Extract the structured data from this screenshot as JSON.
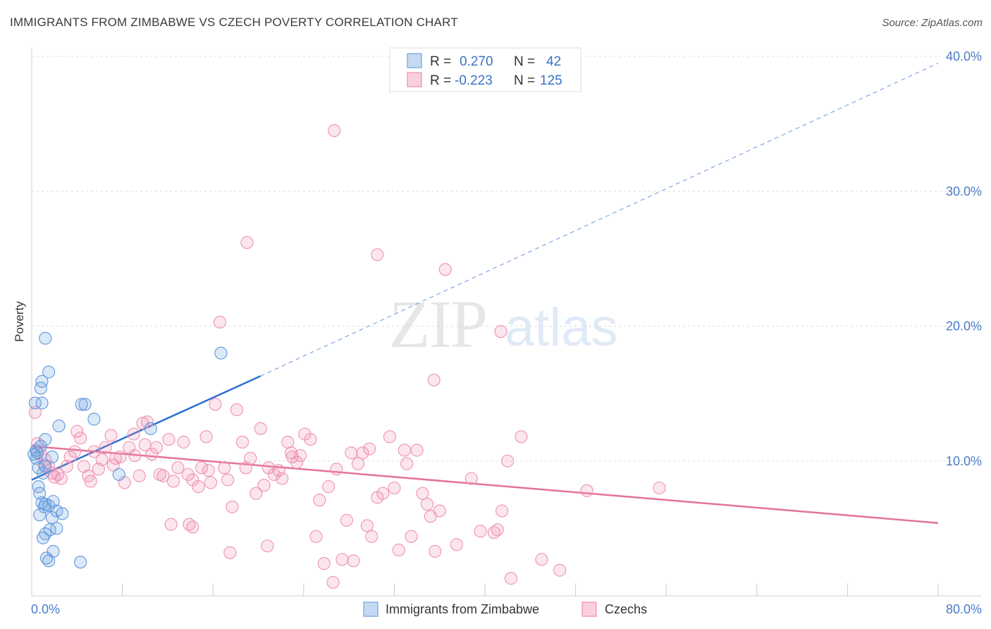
{
  "header": {
    "title": "IMMIGRANTS FROM ZIMBABWE VS CZECH POVERTY CORRELATION CHART",
    "source": "Source: ZipAtlas.com"
  },
  "watermark": {
    "zip": "ZIP",
    "atlas": "atlas"
  },
  "colors": {
    "blue": "#6fa3e0",
    "blue_line": "#2a6fd0",
    "pink": "#f08cb0",
    "pink_line": "#e2739b",
    "label_blue": "#4a7cc9",
    "grid": "#dddddd"
  },
  "legend": {
    "rows": [
      {
        "r_label": "R =",
        "r_value": "0.270",
        "n_label": "N =",
        "n_value": "42"
      },
      {
        "r_label": "R =",
        "r_value": "-0.223",
        "n_label": "N =",
        "n_value": "125"
      }
    ]
  },
  "bottom_legend": {
    "items": [
      {
        "label": "Immigrants from Zimbabwe"
      },
      {
        "label": "Czechs"
      }
    ]
  },
  "chart_data": {
    "type": "scatter",
    "title": "IMMIGRANTS FROM ZIMBABWE VS CZECH POVERTY CORRELATION CHART",
    "xlabel": "",
    "ylabel": "Poverty",
    "xlim": [
      0,
      80
    ],
    "ylim": [
      0,
      40
    ],
    "x_tick_labels": [
      "0.0%",
      "80.0%"
    ],
    "y_tick_labels": [
      "10.0%",
      "20.0%",
      "30.0%",
      "40.0%"
    ],
    "y_ticks": [
      10,
      20,
      30,
      40
    ],
    "grid": true,
    "legend_position": "top-center",
    "series": [
      {
        "name": "Immigrants from Zimbabwe",
        "color": "#6fa3e0",
        "r": 0.27,
        "n": 42,
        "trend": {
          "x_start": 0,
          "y_start": 8.6,
          "x_solid_end": 20.2,
          "y_solid_end": 16.3,
          "x_end": 80,
          "y_end": 39.5
        },
        "points": [
          [
            0.2,
            10.5
          ],
          [
            0.3,
            14.3
          ],
          [
            0.4,
            10.2
          ],
          [
            0.4,
            10.8
          ],
          [
            0.5,
            10.6
          ],
          [
            0.6,
            9.5
          ],
          [
            0.8,
            11.1
          ],
          [
            0.6,
            8.1
          ],
          [
            1.0,
            9.1
          ],
          [
            1.2,
            9.6
          ],
          [
            0.7,
            7.6
          ],
          [
            0.9,
            6.9
          ],
          [
            1.1,
            6.6
          ],
          [
            1.2,
            6.8
          ],
          [
            0.7,
            6.0
          ],
          [
            1.5,
            6.7
          ],
          [
            1.8,
            5.8
          ],
          [
            1.9,
            7.0
          ],
          [
            2.2,
            6.3
          ],
          [
            2.7,
            6.1
          ],
          [
            1.6,
            4.9
          ],
          [
            2.2,
            5.0
          ],
          [
            1.2,
            4.6
          ],
          [
            1.0,
            4.3
          ],
          [
            1.9,
            3.3
          ],
          [
            1.3,
            2.8
          ],
          [
            1.5,
            2.6
          ],
          [
            4.3,
            2.5
          ],
          [
            0.9,
            15.9
          ],
          [
            0.8,
            15.4
          ],
          [
            1.5,
            16.6
          ],
          [
            1.2,
            19.1
          ],
          [
            4.4,
            14.2
          ],
          [
            4.7,
            14.2
          ],
          [
            5.5,
            13.1
          ],
          [
            2.4,
            12.6
          ],
          [
            1.2,
            11.6
          ],
          [
            10.5,
            12.4
          ],
          [
            7.7,
            9.0
          ],
          [
            16.7,
            18.0
          ],
          [
            0.9,
            14.3
          ],
          [
            1.8,
            10.3
          ]
        ]
      },
      {
        "name": "Czechs",
        "color": "#f08cb0",
        "r": -0.223,
        "n": 125,
        "trend": {
          "x_start": 0,
          "y_start": 11.1,
          "x_end": 80,
          "y_end": 5.4
        },
        "points": [
          [
            0.3,
            13.6
          ],
          [
            0.5,
            11.3
          ],
          [
            0.8,
            10.5
          ],
          [
            1.2,
            10.1
          ],
          [
            1.5,
            9.6
          ],
          [
            1.8,
            9.1
          ],
          [
            2.3,
            9.0
          ],
          [
            2.6,
            8.7
          ],
          [
            3.1,
            9.6
          ],
          [
            3.4,
            10.3
          ],
          [
            3.8,
            10.7
          ],
          [
            4.0,
            12.2
          ],
          [
            4.3,
            11.7
          ],
          [
            4.6,
            9.6
          ],
          [
            5.0,
            8.9
          ],
          [
            5.2,
            8.5
          ],
          [
            5.5,
            10.7
          ],
          [
            5.9,
            9.4
          ],
          [
            6.2,
            10.1
          ],
          [
            6.5,
            11.0
          ],
          [
            7.0,
            11.9
          ],
          [
            7.4,
            10.2
          ],
          [
            7.8,
            10.3
          ],
          [
            8.2,
            8.4
          ],
          [
            8.6,
            11.0
          ],
          [
            9.0,
            12.0
          ],
          [
            9.5,
            8.9
          ],
          [
            9.8,
            12.8
          ],
          [
            10.2,
            12.9
          ],
          [
            10.6,
            10.5
          ],
          [
            11.0,
            11.0
          ],
          [
            11.3,
            9.0
          ],
          [
            11.6,
            8.9
          ],
          [
            12.1,
            11.6
          ],
          [
            12.5,
            8.5
          ],
          [
            12.9,
            9.5
          ],
          [
            13.4,
            11.4
          ],
          [
            13.8,
            9.0
          ],
          [
            14.2,
            8.6
          ],
          [
            14.7,
            8.1
          ],
          [
            15.0,
            9.5
          ],
          [
            15.4,
            11.8
          ],
          [
            15.8,
            8.4
          ],
          [
            16.2,
            14.2
          ],
          [
            16.6,
            20.3
          ],
          [
            17.0,
            9.5
          ],
          [
            17.3,
            8.6
          ],
          [
            17.7,
            6.6
          ],
          [
            18.1,
            13.8
          ],
          [
            18.6,
            11.4
          ],
          [
            18.9,
            9.5
          ],
          [
            19.3,
            10.2
          ],
          [
            19.8,
            7.6
          ],
          [
            20.2,
            12.4
          ],
          [
            20.5,
            8.2
          ],
          [
            20.9,
            9.5
          ],
          [
            21.4,
            9.0
          ],
          [
            21.8,
            9.3
          ],
          [
            22.1,
            8.7
          ],
          [
            22.6,
            11.4
          ],
          [
            23.0,
            10.3
          ],
          [
            23.4,
            9.9
          ],
          [
            23.7,
            10.4
          ],
          [
            24.1,
            12.0
          ],
          [
            24.6,
            11.6
          ],
          [
            25.1,
            4.4
          ],
          [
            25.4,
            7.1
          ],
          [
            25.8,
            2.4
          ],
          [
            26.2,
            8.1
          ],
          [
            26.6,
            1.0
          ],
          [
            26.9,
            9.4
          ],
          [
            27.4,
            2.7
          ],
          [
            27.8,
            5.6
          ],
          [
            28.2,
            10.6
          ],
          [
            28.8,
            9.8
          ],
          [
            29.2,
            10.6
          ],
          [
            29.6,
            5.2
          ],
          [
            30.0,
            4.4
          ],
          [
            30.5,
            7.3
          ],
          [
            31.0,
            7.6
          ],
          [
            31.6,
            11.8
          ],
          [
            32.4,
            3.4
          ],
          [
            32.9,
            10.8
          ],
          [
            33.5,
            4.4
          ],
          [
            34.5,
            7.6
          ],
          [
            34.9,
            6.8
          ],
          [
            35.2,
            5.9
          ],
          [
            35.6,
            3.3
          ],
          [
            36.5,
            24.2
          ],
          [
            37.5,
            3.8
          ],
          [
            38.8,
            8.7
          ],
          [
            39.6,
            4.8
          ],
          [
            40.8,
            4.7
          ],
          [
            41.1,
            4.9
          ],
          [
            41.5,
            6.3
          ],
          [
            42.0,
            10.0
          ],
          [
            42.3,
            1.3
          ],
          [
            43.2,
            11.8
          ],
          [
            45.0,
            2.7
          ],
          [
            46.6,
            1.9
          ],
          [
            49.0,
            7.8
          ],
          [
            55.4,
            8.0
          ],
          [
            26.7,
            34.5
          ],
          [
            19.0,
            26.2
          ],
          [
            30.5,
            25.3
          ],
          [
            35.5,
            16.0
          ],
          [
            41.4,
            19.6
          ],
          [
            1.1,
            9.7
          ],
          [
            2.0,
            8.8
          ],
          [
            9.1,
            10.4
          ],
          [
            12.3,
            5.3
          ],
          [
            13.9,
            5.3
          ],
          [
            14.2,
            5.1
          ],
          [
            17.5,
            3.2
          ],
          [
            20.8,
            3.7
          ],
          [
            28.4,
            2.6
          ],
          [
            32.0,
            8.0
          ],
          [
            33.1,
            9.8
          ],
          [
            34.0,
            10.8
          ],
          [
            36.0,
            6.3
          ],
          [
            10.0,
            11.2
          ],
          [
            7.2,
            9.7
          ],
          [
            15.6,
            9.3
          ],
          [
            22.9,
            10.6
          ],
          [
            29.8,
            10.9
          ]
        ]
      }
    ]
  }
}
